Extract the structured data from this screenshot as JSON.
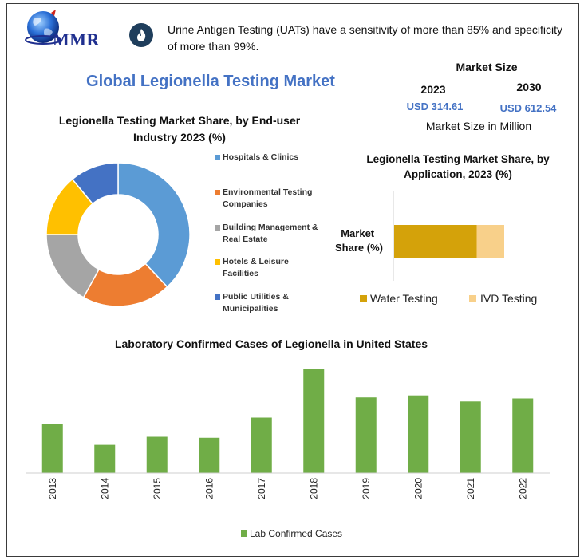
{
  "logo": {
    "text": "MMR"
  },
  "header": {
    "fact_icon": "flame-icon",
    "fact": "Urine Antigen Testing (UATs) have a sensitivity of more than 85% and specificity of more than 99%."
  },
  "title": "Global Legionella Testing Market",
  "market_size": {
    "title": "Market Size",
    "year_1": "2023",
    "value_1": "USD 314.61",
    "year_2": "2030",
    "value_2": "USD 612.54",
    "note": "Market Size in Million"
  },
  "colors": {
    "accent": "#4472c4",
    "hospitals": "#5b9bd5",
    "environmental": "#ed7d31",
    "building": "#a5a5a5",
    "hotels": "#ffc000",
    "utilities": "#4472c4",
    "water_testing": "#d4a20a",
    "ivd_testing": "#f8d08a",
    "lab_cases": "#70ad47"
  },
  "chart_data": [
    {
      "type": "pie",
      "title": "Legionella Testing Market Share, by End-user Industry 2023 (%)",
      "categories": [
        "Hospitals & Clinics",
        "Environmental Testing Companies",
        "Building Management & Real Estate",
        "Hotels & Leisure Facilities",
        "Public Utilities & Municipalities"
      ],
      "values": [
        38,
        20,
        17,
        14,
        11
      ],
      "legend": "right"
    },
    {
      "type": "bar",
      "orientation": "horizontal-stacked",
      "title": "Legionella Testing Market Share, by Application, 2023 (%)",
      "categories": [
        "Market Share (%)"
      ],
      "series": [
        {
          "name": "Water Testing",
          "values": [
            75
          ]
        },
        {
          "name": "IVD Testing",
          "values": [
            25
          ]
        }
      ],
      "legend": "bottom"
    },
    {
      "type": "bar",
      "title": "Laboratory Confirmed Cases of Legionella in United States",
      "categories": [
        "2013",
        "2014",
        "2015",
        "2016",
        "2017",
        "2018",
        "2019",
        "2020",
        "2021",
        "2022"
      ],
      "series": [
        {
          "name": "Lab Confirmed Cases",
          "values": [
            4900,
            2800,
            3600,
            3500,
            5500,
            10300,
            7500,
            7700,
            7100,
            7400
          ]
        }
      ],
      "ylim": [
        0,
        11000
      ],
      "legend": "bottom",
      "grid": false
    }
  ]
}
